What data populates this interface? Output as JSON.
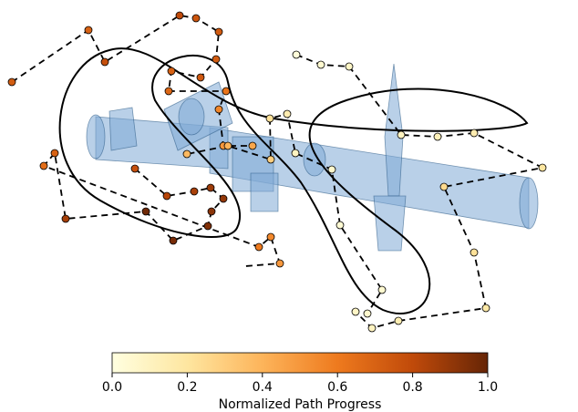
{
  "chart_data": {
    "type": "path-progress",
    "colorbar_label": "Normalized Path Progress",
    "xlim": [
      0,
      1
    ],
    "xticks": [
      {
        "value": 0,
        "label": "0.0"
      },
      0.2,
      0.4,
      0.6,
      0.8,
      {
        "value": 1,
        "label": "1.0"
      }
    ],
    "colormap": [
      "#ffffe0",
      "#fee6a0",
      "#fdb45a",
      "#ee7a1e",
      "#c04a0a",
      "#662506"
    ],
    "point_progress": [
      0.72,
      0.7,
      0.78,
      0.8,
      0.75,
      0.73,
      0.72,
      0.74,
      0.7,
      0.68,
      0.62,
      0.56,
      0.5,
      0.45,
      0.02,
      0.05,
      0.08,
      0.1,
      0.12,
      0.15,
      0.2,
      0.25,
      0.22,
      0.18,
      0.14,
      0.1,
      0.08,
      0.06,
      0.05,
      0.04,
      0.06,
      0.1,
      0.15,
      0.22,
      0.3,
      0.4,
      0.38,
      0.78,
      0.82,
      0.85,
      0.88,
      0.9,
      0.92,
      0.94,
      0.96,
      0.98,
      0.86,
      0.7,
      0.65,
      0.6,
      0.55,
      0.5
    ]
  }
}
